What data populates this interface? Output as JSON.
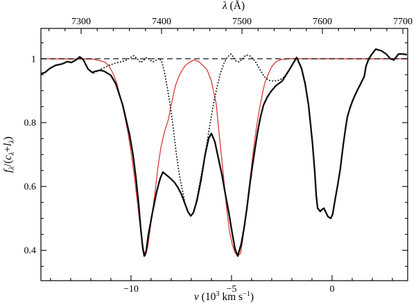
{
  "figure": {
    "background": "#ffffff",
    "frame_color": "#000000",
    "accent_red": "#dc3939"
  },
  "titles": {
    "top": [
      {
        "t": "λ",
        "i": 1
      },
      {
        "t": " (Å)"
      }
    ],
    "bottom": [
      {
        "t": "v",
        "i": 1
      },
      {
        "t": " (10"
      },
      {
        "t": "3",
        "sup": 1
      },
      {
        "t": " km s"
      },
      {
        "t": "−1",
        "sup": 1
      },
      {
        "t": ")"
      }
    ],
    "left": [
      {
        "t": "f",
        "i": 1
      },
      {
        "t": "λ",
        "sub": 1,
        "i": 1
      },
      {
        "t": "/("
      },
      {
        "t": "c",
        "i": 1
      },
      {
        "t": "λ",
        "sub": 1,
        "i": 1
      },
      {
        "t": "+"
      },
      {
        "t": "l",
        "i": 1
      },
      {
        "t": "λ",
        "sub": 1,
        "i": 1
      },
      {
        "t": ")"
      }
    ]
  },
  "chart_data": {
    "type": "line",
    "title": "",
    "xlabel": "v (10^3 km s^-1)",
    "xlabel_top": "lambda (Angstrom)",
    "ylabel": "f_lambda/(c_lambda+l_lambda)",
    "grid": false,
    "legend": null,
    "axes": {
      "bottom": {
        "range": [
          -14.48,
          3.76
        ],
        "major_ticks": [
          -10,
          -5,
          0
        ],
        "labels": [
          "−10",
          "−5",
          "0"
        ],
        "minor_step": 1
      },
      "top": {
        "range": [
          7250,
          7706
        ],
        "major_ticks": [
          7300,
          7400,
          7500,
          7600,
          7700
        ],
        "labels": [
          "7300",
          "7400",
          "7500",
          "7600",
          "7700"
        ],
        "minor_step": 20
      },
      "left": {
        "range": [
          0.305,
          1.095
        ],
        "major_ticks": [
          0.4,
          0.6,
          0.8,
          1
        ],
        "labels": [
          "0.4",
          "0.6",
          "0.8",
          "1"
        ],
        "minor_step": 0.05
      },
      "right": {
        "mirror_of": "left"
      }
    },
    "series": [
      {
        "name": "model-fit",
        "style": "solid",
        "color": "#dc3939",
        "width": 1.3,
        "points": [
          [
            -14.48,
            1.0
          ],
          [
            -11.9,
            0.999
          ],
          [
            -11.31,
            0.99
          ],
          [
            -11.1,
            0.978
          ],
          [
            -10.9,
            0.955
          ],
          [
            -10.69,
            0.92
          ],
          [
            -10.52,
            0.878
          ],
          [
            -10.34,
            0.83
          ],
          [
            -10.17,
            0.775
          ],
          [
            -10.0,
            0.71
          ],
          [
            -9.83,
            0.63
          ],
          [
            -9.69,
            0.555
          ],
          [
            -9.55,
            0.48
          ],
          [
            -9.45,
            0.43
          ],
          [
            -9.34,
            0.39
          ],
          [
            -9.28,
            0.383
          ],
          [
            -9.17,
            0.41
          ],
          [
            -9.07,
            0.455
          ],
          [
            -8.93,
            0.52
          ],
          [
            -8.79,
            0.59
          ],
          [
            -8.66,
            0.66
          ],
          [
            -8.52,
            0.72
          ],
          [
            -8.34,
            0.77
          ],
          [
            -8.14,
            0.81
          ],
          [
            -7.97,
            0.865
          ],
          [
            -7.79,
            0.915
          ],
          [
            -7.62,
            0.945
          ],
          [
            -7.45,
            0.965
          ],
          [
            -7.28,
            0.98
          ],
          [
            -7.07,
            0.99
          ],
          [
            -6.86,
            0.996
          ],
          [
            -6.62,
            0.991
          ],
          [
            -6.41,
            0.978
          ],
          [
            -6.21,
            0.965
          ],
          [
            -6.0,
            0.93
          ],
          [
            -5.76,
            0.858
          ],
          [
            -5.59,
            0.75
          ],
          [
            -5.41,
            0.64
          ],
          [
            -5.24,
            0.53
          ],
          [
            -5.1,
            0.46
          ],
          [
            -4.97,
            0.42
          ],
          [
            -4.83,
            0.393
          ],
          [
            -4.69,
            0.383
          ],
          [
            -4.55,
            0.39
          ],
          [
            -4.45,
            0.43
          ],
          [
            -4.31,
            0.5
          ],
          [
            -4.17,
            0.575
          ],
          [
            -4.03,
            0.65
          ],
          [
            -3.9,
            0.72
          ],
          [
            -3.76,
            0.785
          ],
          [
            -3.62,
            0.84
          ],
          [
            -3.45,
            0.895
          ],
          [
            -3.34,
            0.925
          ],
          [
            -3.17,
            0.952
          ],
          [
            -3.0,
            0.975
          ],
          [
            -2.83,
            0.988
          ],
          [
            -2.66,
            0.995
          ],
          [
            -2.48,
            0.998
          ],
          [
            -2.21,
            1.0
          ],
          [
            3.76,
            1.0
          ]
        ]
      },
      {
        "name": "continuum-level",
        "style": "dashed",
        "color": "#000000",
        "width": 1.2,
        "points": [
          [
            -14.48,
            1.0
          ],
          [
            3.76,
            1.0
          ]
        ]
      },
      {
        "name": "second-component",
        "style": "dotted",
        "color": "#1a1a1a",
        "width": 1.7,
        "points": [
          [
            -11.86,
            0.955
          ],
          [
            -11.62,
            0.963
          ],
          [
            -11.34,
            0.972
          ],
          [
            -11.07,
            0.98
          ],
          [
            -10.79,
            0.986
          ],
          [
            -10.52,
            0.99
          ],
          [
            -10.28,
            0.994
          ],
          [
            -10.07,
            1.002
          ],
          [
            -9.86,
            1.01
          ],
          [
            -9.66,
            0.998
          ],
          [
            -9.52,
            0.988
          ],
          [
            -9.34,
            0.997
          ],
          [
            -9.21,
            1.004
          ],
          [
            -9.03,
            0.995
          ],
          [
            -8.9,
            0.99
          ],
          [
            -8.72,
            0.997
          ],
          [
            -8.59,
            1.002
          ],
          [
            -8.45,
            0.988
          ],
          [
            -8.31,
            0.95
          ],
          [
            -8.17,
            0.9
          ],
          [
            -8.03,
            0.845
          ],
          [
            -7.9,
            0.785
          ],
          [
            -7.76,
            0.71
          ],
          [
            -7.62,
            0.645
          ],
          [
            -7.45,
            0.59
          ],
          [
            -7.31,
            0.548
          ],
          [
            -7.17,
            0.52
          ],
          [
            -7.03,
            0.507
          ],
          [
            -6.9,
            0.518
          ],
          [
            -6.76,
            0.55
          ],
          [
            -6.59,
            0.607
          ],
          [
            -6.41,
            0.667
          ],
          [
            -6.24,
            0.73
          ],
          [
            -6.07,
            0.795
          ],
          [
            -5.9,
            0.857
          ],
          [
            -5.72,
            0.912
          ],
          [
            -5.55,
            0.955
          ],
          [
            -5.38,
            0.985
          ],
          [
            -5.21,
            1.005
          ],
          [
            -5.03,
            1.015
          ],
          [
            -4.9,
            1.005
          ],
          [
            -4.76,
            0.992
          ],
          [
            -4.62,
            0.99
          ],
          [
            -4.45,
            1.0
          ],
          [
            -4.28,
            1.012
          ],
          [
            -4.1,
            1.01
          ],
          [
            -3.97,
            1.002
          ],
          [
            -3.83,
            0.993
          ],
          [
            -3.69,
            0.978
          ],
          [
            -3.55,
            0.962
          ],
          [
            -3.41,
            0.948
          ],
          [
            -3.28,
            0.938
          ],
          [
            -3.1,
            0.932
          ],
          [
            -2.9,
            0.93
          ],
          [
            -2.69,
            0.932
          ],
          [
            -2.52,
            0.937
          ],
          [
            -2.34,
            0.945
          ]
        ]
      },
      {
        "name": "observed-spectrum",
        "style": "solid",
        "color": "#0a0a0a",
        "width": 2.3,
        "points": [
          [
            -14.48,
            0.953
          ],
          [
            -14.28,
            0.957
          ],
          [
            -14.03,
            0.97
          ],
          [
            -13.76,
            0.979
          ],
          [
            -13.41,
            0.984
          ],
          [
            -13.17,
            0.991
          ],
          [
            -12.97,
            0.988
          ],
          [
            -12.72,
            0.997
          ],
          [
            -12.55,
            1.006
          ],
          [
            -12.38,
            0.998
          ],
          [
            -12.14,
            0.968
          ],
          [
            -11.93,
            0.957
          ],
          [
            -11.76,
            0.961
          ],
          [
            -11.52,
            0.964
          ],
          [
            -11.34,
            0.961
          ],
          [
            -11.0,
            0.948
          ],
          [
            -10.76,
            0.922
          ],
          [
            -10.59,
            0.89
          ],
          [
            -10.41,
            0.855
          ],
          [
            -10.24,
            0.808
          ],
          [
            -10.07,
            0.762
          ],
          [
            -9.9,
            0.7
          ],
          [
            -9.76,
            0.63
          ],
          [
            -9.62,
            0.545
          ],
          [
            -9.52,
            0.47
          ],
          [
            -9.41,
            0.405
          ],
          [
            -9.34,
            0.382
          ],
          [
            -9.24,
            0.4
          ],
          [
            -9.14,
            0.448
          ],
          [
            -8.93,
            0.52
          ],
          [
            -8.72,
            0.585
          ],
          [
            -8.55,
            0.625
          ],
          [
            -8.41,
            0.645
          ],
          [
            -8.24,
            0.636
          ],
          [
            -8.03,
            0.625
          ],
          [
            -7.83,
            0.612
          ],
          [
            -7.66,
            0.596
          ],
          [
            -7.48,
            0.574
          ],
          [
            -7.31,
            0.545
          ],
          [
            -7.17,
            0.521
          ],
          [
            -7.03,
            0.508
          ],
          [
            -6.9,
            0.517
          ],
          [
            -6.72,
            0.556
          ],
          [
            -6.52,
            0.62
          ],
          [
            -6.31,
            0.7
          ],
          [
            -6.14,
            0.75
          ],
          [
            -6.0,
            0.766
          ],
          [
            -5.83,
            0.74
          ],
          [
            -5.66,
            0.69
          ],
          [
            -5.48,
            0.638
          ],
          [
            -5.31,
            0.576
          ],
          [
            -5.14,
            0.52
          ],
          [
            -4.97,
            0.455
          ],
          [
            -4.83,
            0.405
          ],
          [
            -4.69,
            0.382
          ],
          [
            -4.52,
            0.42
          ],
          [
            -4.38,
            0.468
          ],
          [
            -4.24,
            0.53
          ],
          [
            -4.1,
            0.6
          ],
          [
            -3.97,
            0.66
          ],
          [
            -3.83,
            0.72
          ],
          [
            -3.69,
            0.775
          ],
          [
            -3.55,
            0.82
          ],
          [
            -3.41,
            0.855
          ],
          [
            -3.24,
            0.878
          ],
          [
            -3.07,
            0.895
          ],
          [
            -2.79,
            0.916
          ],
          [
            -2.48,
            0.93
          ],
          [
            -2.28,
            0.95
          ],
          [
            -2.1,
            0.968
          ],
          [
            -1.97,
            0.982
          ],
          [
            -1.76,
            1.004
          ],
          [
            -1.52,
            0.97
          ],
          [
            -1.34,
            0.922
          ],
          [
            -1.17,
            0.855
          ],
          [
            -1.07,
            0.795
          ],
          [
            -0.97,
            0.733
          ],
          [
            -0.86,
            0.645
          ],
          [
            -0.79,
            0.575
          ],
          [
            -0.72,
            0.532
          ],
          [
            -0.59,
            0.522
          ],
          [
            -0.48,
            0.529
          ],
          [
            -0.41,
            0.532
          ],
          [
            -0.31,
            0.519
          ],
          [
            -0.21,
            0.506
          ],
          [
            -0.07,
            0.5
          ],
          [
            0.03,
            0.513
          ],
          [
            0.14,
            0.555
          ],
          [
            0.28,
            0.605
          ],
          [
            0.41,
            0.655
          ],
          [
            0.55,
            0.728
          ],
          [
            0.66,
            0.778
          ],
          [
            0.76,
            0.818
          ],
          [
            0.9,
            0.848
          ],
          [
            1.03,
            0.87
          ],
          [
            1.17,
            0.89
          ],
          [
            1.31,
            0.908
          ],
          [
            1.45,
            0.925
          ],
          [
            1.6,
            0.945
          ],
          [
            1.69,
            0.978
          ],
          [
            1.83,
            1.0
          ],
          [
            1.93,
            1.01
          ],
          [
            2.17,
            1.03
          ],
          [
            2.45,
            1.025
          ],
          [
            2.69,
            1.015
          ],
          [
            2.9,
            1.0
          ],
          [
            3.07,
            0.996
          ],
          [
            3.31,
            1.015
          ],
          [
            3.48,
            1.015
          ],
          [
            3.72,
            1.013
          ]
        ]
      }
    ]
  }
}
